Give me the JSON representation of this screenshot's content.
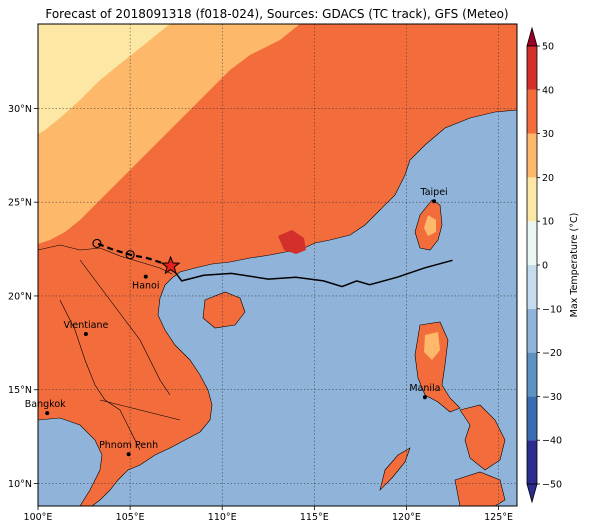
{
  "title": "Forecast of 2018091318 (f018-024), Sources: GDACS (TC track), GFS (Meteo)",
  "map": {
    "lon_range": [
      100,
      126
    ],
    "lat_range": [
      8.8,
      34.5
    ],
    "x_ticks": [
      {
        "value": 100,
        "label": "100°E"
      },
      {
        "value": 105,
        "label": "105°E"
      },
      {
        "value": 110,
        "label": "110°E"
      },
      {
        "value": 115,
        "label": "115°E"
      },
      {
        "value": 120,
        "label": "120°E"
      },
      {
        "value": 125,
        "label": "125°E"
      }
    ],
    "y_ticks": [
      {
        "value": 10,
        "label": "10°N"
      },
      {
        "value": 15,
        "label": "15°N"
      },
      {
        "value": 20,
        "label": "20°N"
      },
      {
        "value": 25,
        "label": "25°N"
      },
      {
        "value": 30,
        "label": "30°N"
      }
    ],
    "grid": true,
    "ocean_color": "#8fb3d9",
    "cities": [
      {
        "name": "Taipei",
        "lon": 121.5,
        "lat": 25.05
      },
      {
        "name": "Hanoi",
        "lon": 105.85,
        "lat": 21.03
      },
      {
        "name": "Vientiane",
        "lon": 102.6,
        "lat": 17.97
      },
      {
        "name": "Manila",
        "lon": 121.0,
        "lat": 14.6
      },
      {
        "name": "Bangkok",
        "lon": 100.5,
        "lat": 13.75
      },
      {
        "name": "Phnom Penh",
        "lon": 104.92,
        "lat": 11.56
      }
    ],
    "track_observed": [
      [
        122.5,
        21.9
      ],
      [
        121.0,
        21.5
      ],
      [
        119.5,
        21.0
      ],
      [
        118.0,
        20.6
      ],
      [
        117.3,
        20.8
      ],
      [
        116.5,
        20.5
      ],
      [
        115.5,
        20.8
      ],
      [
        114.0,
        21.0
      ],
      [
        112.5,
        20.9
      ],
      [
        110.5,
        21.2
      ],
      [
        109.0,
        21.1
      ],
      [
        107.8,
        20.8
      ],
      [
        107.2,
        21.6
      ]
    ],
    "track_forecast": [
      [
        107.2,
        21.6
      ],
      [
        106.0,
        22.0
      ],
      [
        105.0,
        22.2
      ],
      [
        104.0,
        22.5
      ],
      [
        103.2,
        22.8
      ]
    ],
    "forecast_points": [
      [
        105.0,
        22.2
      ],
      [
        103.2,
        22.8
      ]
    ],
    "current_position": [
      107.2,
      21.6
    ]
  },
  "colorbar": {
    "label": "Max Temperature (°C)",
    "levels": [
      -50,
      -40,
      -30,
      -20,
      -10,
      0,
      10,
      20,
      30,
      40,
      50
    ],
    "tick_labels": [
      "−50",
      "−40",
      "−30",
      "−20",
      "−10",
      "0",
      "10",
      "20",
      "30",
      "40",
      "50"
    ],
    "colors": [
      "#2c2c8f",
      "#3a6aaf",
      "#5d92c2",
      "#8fb3d9",
      "#c5dcec",
      "#ecf6f2",
      "#fde7a4",
      "#fdb86a",
      "#f26c3c",
      "#d3302b",
      "#9b0025"
    ]
  }
}
